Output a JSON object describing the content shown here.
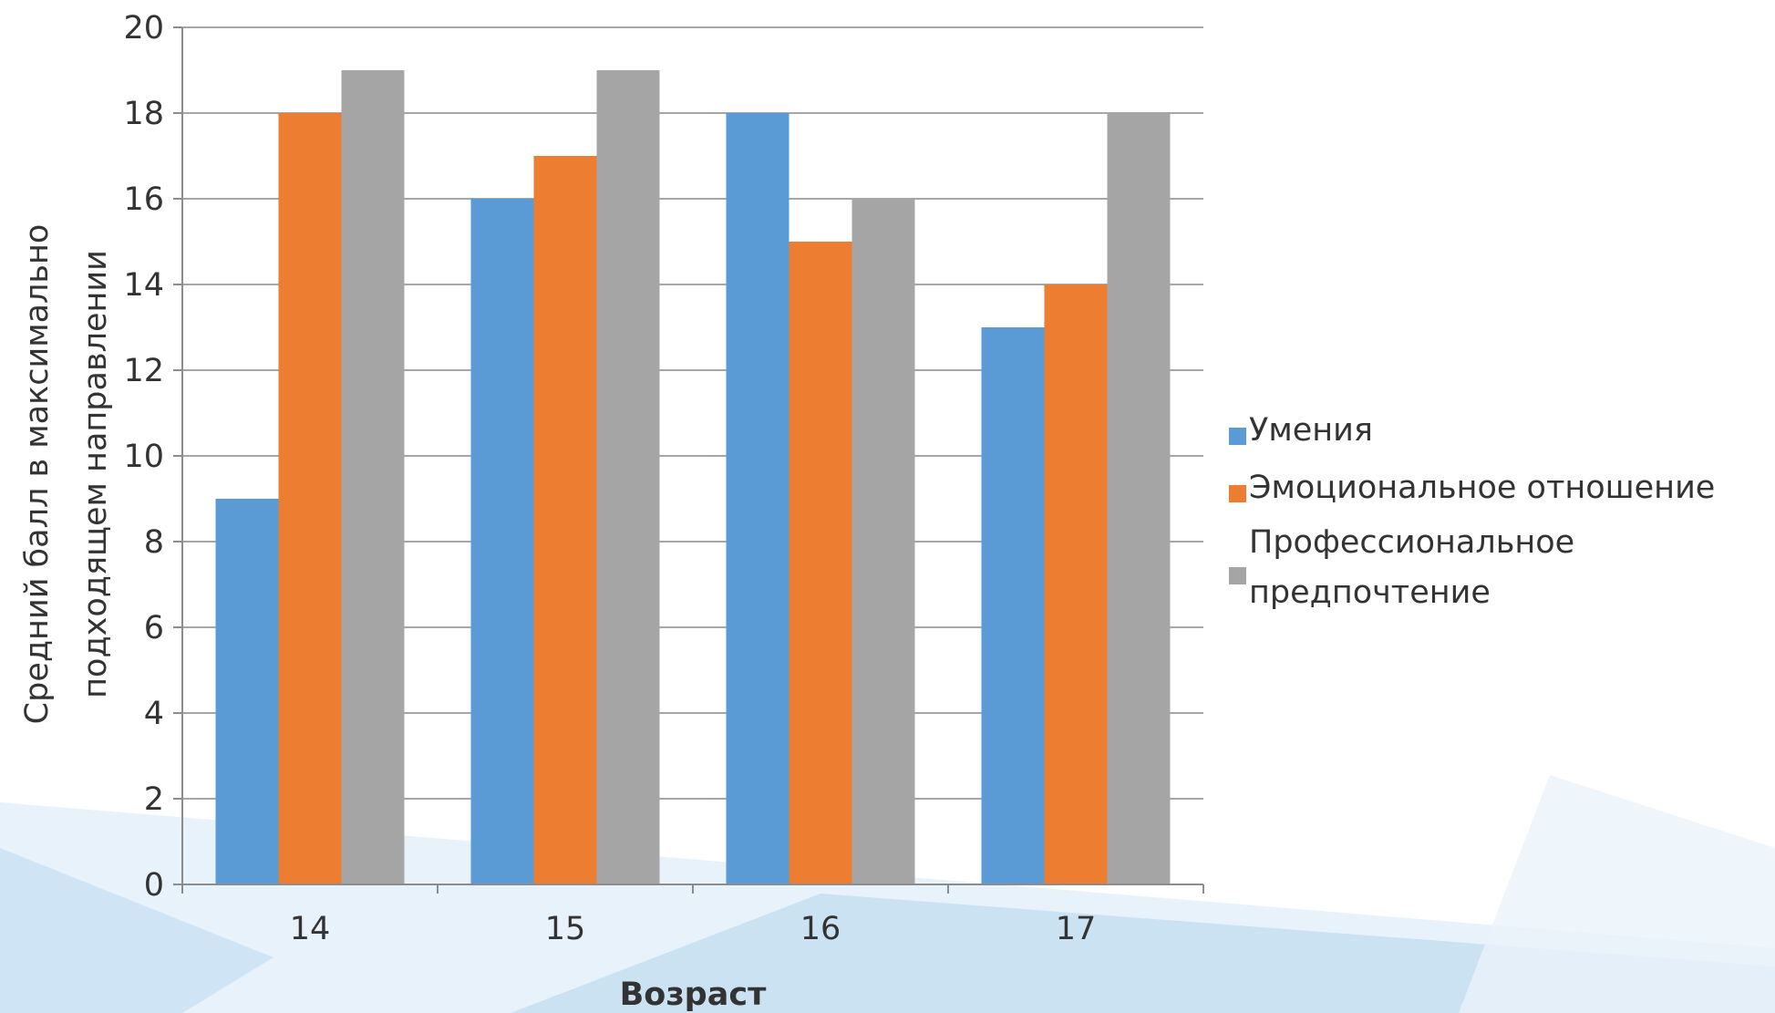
{
  "chart_data": {
    "type": "bar",
    "xlabel": "Возраст",
    "ylabel": [
      "Средний балл  в максимально",
      "подходящем направлении"
    ],
    "categories": [
      "14",
      "15",
      "16",
      "17"
    ],
    "ylim": [
      0,
      20
    ],
    "yticks": [
      0,
      2,
      4,
      6,
      8,
      10,
      12,
      14,
      16,
      18,
      20
    ],
    "grid": true,
    "legend_position": "right",
    "series": [
      {
        "name": "Умения",
        "color": "#5b9bd5",
        "values": [
          9,
          16,
          18,
          13
        ]
      },
      {
        "name": "Эмоциональное отношение",
        "color": "#ed7d31",
        "values": [
          18,
          17,
          15,
          14
        ]
      },
      {
        "name": "Профессиональное\nпредпочтение",
        "color": "#a5a5a5",
        "values": [
          19,
          19,
          16,
          18
        ]
      }
    ]
  }
}
